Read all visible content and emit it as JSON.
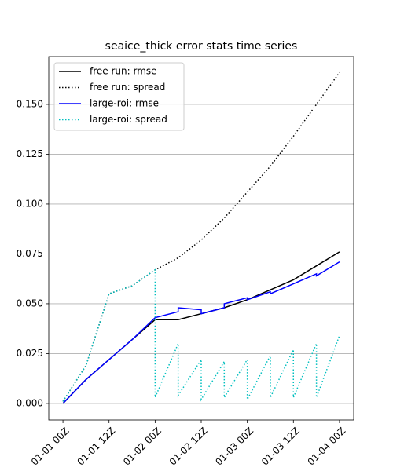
{
  "chart_data": {
    "type": "line",
    "title": "seaice_thick error stats time series",
    "xlim": [
      -3.7,
      75.7
    ],
    "xticks": [
      {
        "value": 0,
        "label": "01-01 00Z"
      },
      {
        "value": 12,
        "label": "01-01 12Z"
      },
      {
        "value": 24,
        "label": "01-02 00Z"
      },
      {
        "value": 36,
        "label": "01-02 12Z"
      },
      {
        "value": 48,
        "label": "01-03 00Z"
      },
      {
        "value": 60,
        "label": "01-03 12Z"
      },
      {
        "value": 72,
        "label": "01-04 00Z"
      }
    ],
    "ylim": [
      -0.0083,
      0.174
    ],
    "yticks": [
      {
        "value": 0,
        "label": "0.000"
      },
      {
        "value": 0.025,
        "label": "0.025"
      },
      {
        "value": 0.05,
        "label": "0.050"
      },
      {
        "value": 0.075,
        "label": "0.075"
      },
      {
        "value": 0.1,
        "label": "0.100"
      },
      {
        "value": 0.125,
        "label": "0.125"
      },
      {
        "value": 0.15,
        "label": "0.150"
      }
    ],
    "grid": "y",
    "legend": "upper left",
    "series": [
      {
        "name": "free run: rmse",
        "color": "#000000",
        "style": "solid",
        "x": [
          0,
          6,
          12,
          18,
          24,
          30,
          36,
          42,
          48,
          54,
          60,
          66,
          72
        ],
        "values": [
          0.0,
          0.012,
          0.022,
          0.032,
          0.042,
          0.042,
          0.045,
          0.048,
          0.052,
          0.057,
          0.062,
          0.069,
          0.076
        ]
      },
      {
        "name": "free run: spread",
        "color": "#000000",
        "style": "dotted",
        "x": [
          0,
          6,
          12,
          18,
          24,
          30,
          36,
          42,
          48,
          54,
          60,
          66,
          72
        ],
        "values": [
          0.001,
          0.019,
          0.055,
          0.059,
          0.067,
          0.073,
          0.082,
          0.093,
          0.106,
          0.119,
          0.134,
          0.15,
          0.166
        ]
      },
      {
        "name": "large-roi: rmse",
        "color": "#0000ff",
        "style": "solid",
        "x": [
          0,
          6,
          12,
          18,
          24,
          30,
          30,
          36,
          36,
          42,
          42,
          48,
          48,
          54,
          54,
          60,
          66,
          66,
          72
        ],
        "values": [
          0.0,
          0.012,
          0.022,
          0.032,
          0.043,
          0.046,
          0.048,
          0.047,
          0.045,
          0.048,
          0.05,
          0.053,
          0.052,
          0.056,
          0.055,
          0.06,
          0.065,
          0.064,
          0.071
        ]
      },
      {
        "name": "large-roi: spread",
        "color": "#00bfbf",
        "style": "dotted",
        "x": [
          0,
          6,
          12,
          18,
          24,
          24,
          30,
          30,
          36,
          36,
          42,
          42,
          48,
          48,
          54,
          54,
          60,
          60,
          66,
          66,
          72
        ],
        "values": [
          0.001,
          0.019,
          0.055,
          0.059,
          0.067,
          0.003,
          0.03,
          0.004,
          0.022,
          0.002,
          0.021,
          0.003,
          0.022,
          0.002,
          0.024,
          0.003,
          0.027,
          0.003,
          0.03,
          0.003,
          0.034
        ]
      }
    ]
  }
}
